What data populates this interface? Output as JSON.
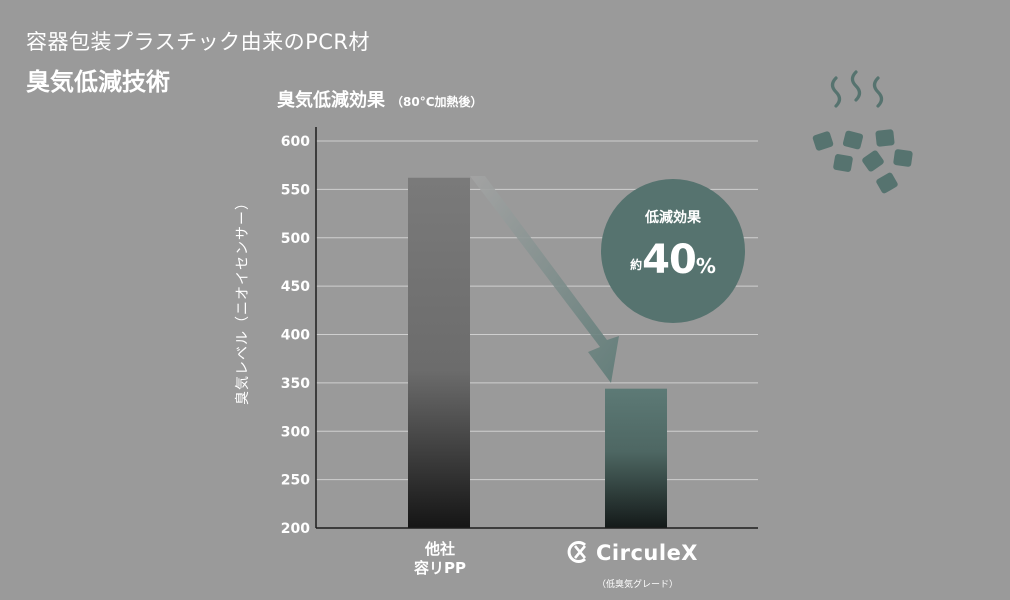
{
  "header": {
    "subtitle": "容器包装プラスチック由来のPCR材",
    "title": "臭気低減技術"
  },
  "chart_title": {
    "main": "臭気低減効果",
    "note": "（80°C加熱後）"
  },
  "badge": {
    "label": "低減効果",
    "prefix": "約",
    "value": "40",
    "unit": "%"
  },
  "brand": {
    "name": "CirculeX",
    "sub": "（低臭気グレード）"
  },
  "colors": {
    "background": "#9a9a9a",
    "accent": "#56736f",
    "bar_other": "#777777",
    "bar_circulex": "#5a7873"
  },
  "icons": [
    "smell-cubes-icon",
    "circulex-logo-icon"
  ],
  "chart_data": {
    "type": "bar",
    "categories": [
      "他社\n容リPP",
      "CirculeX"
    ],
    "category_label_lines": [
      "他社",
      "容リPP"
    ],
    "values": [
      562,
      344
    ],
    "ylabel": "臭気レベル（ニオイセンサー）",
    "ylim": [
      200,
      600
    ],
    "yticks": [
      200,
      250,
      300,
      350,
      400,
      450,
      500,
      550,
      600
    ],
    "grid": true
  }
}
